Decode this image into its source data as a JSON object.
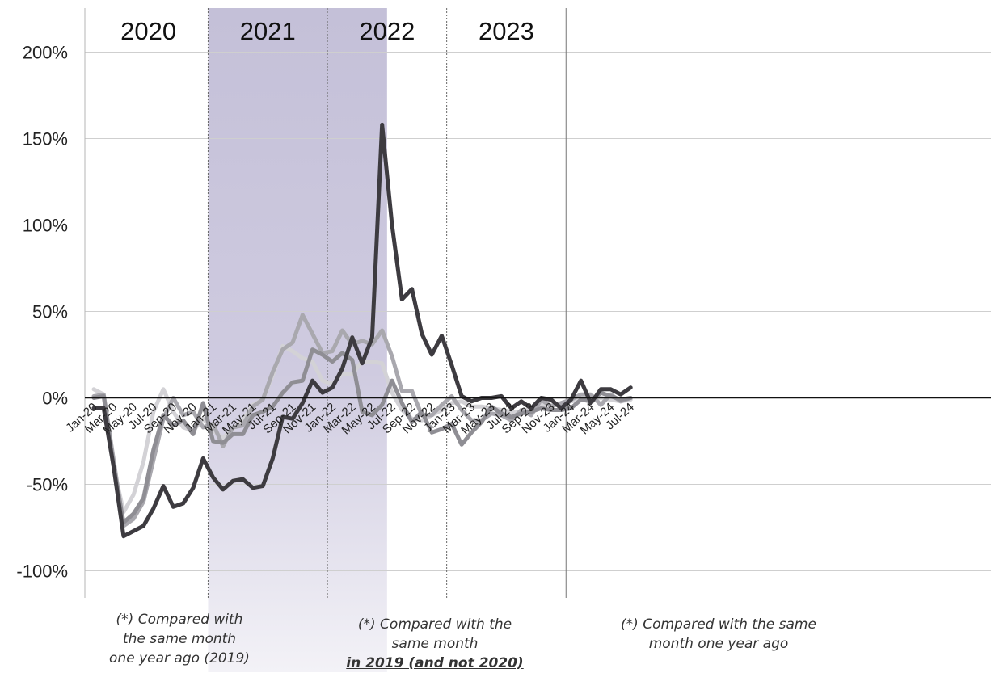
{
  "chart_data": {
    "type": "line",
    "y_ticks": [
      "200%",
      "150%",
      "100%",
      "50%",
      "0%",
      "-50%",
      "-100%"
    ],
    "y_tick_values": [
      200,
      150,
      100,
      50,
      0,
      -50,
      -100
    ],
    "ylim": [
      -115,
      225
    ],
    "x_tick_labels": [
      "Jan-20",
      "Mar-20",
      "May-20",
      "Jul-20",
      "Sep-20",
      "Nov-20",
      "Jan-21",
      "Mar-21",
      "May-21",
      "Jul-21",
      "Sep-21",
      "Nov-21",
      "Jan-22",
      "Mar-22",
      "May-22",
      "Jul-22",
      "Sep-22",
      "Nov-22",
      "Jan-23",
      "Mar-23",
      "May-23",
      "Jul-23",
      "Sep-23",
      "Nov-23",
      "Jan-24",
      "Mar-24",
      "May-24",
      "Jul-24"
    ],
    "years": [
      {
        "label": "2020",
        "start": "Jan-20"
      },
      {
        "label": "2021",
        "start": "Jan-21"
      },
      {
        "label": "2022",
        "start": "Jan-22"
      },
      {
        "label": "2023",
        "start": "Jan-23"
      }
    ],
    "highlight": {
      "from": "Jan-21",
      "to": "Jun-22"
    },
    "grid": true,
    "series": [
      {
        "color": "#3d3b40",
        "values": [
          -6,
          -6,
          -40,
          -80,
          -77,
          -74,
          -64,
          -51,
          -63,
          -61,
          -52,
          -35,
          -46,
          -53,
          -48,
          -47,
          -52,
          -51,
          -35,
          -11,
          -12,
          -3,
          10,
          3,
          6,
          17,
          35,
          20,
          35,
          158,
          100,
          57,
          63,
          37,
          25,
          36,
          19,
          1,
          -2,
          0,
          0,
          1,
          -6,
          -2,
          -6,
          0,
          -1,
          -6,
          -1,
          10,
          -3,
          5,
          5,
          2,
          6
        ]
      },
      {
        "color": "#8f8e94",
        "values": [
          0,
          1,
          -40,
          -72,
          -67,
          -58,
          -30,
          -10,
          -16,
          -13,
          -21,
          -3,
          -25,
          -26,
          -21,
          -21,
          -10,
          -8,
          -5,
          3,
          9,
          10,
          28,
          25,
          21,
          26,
          22,
          -8,
          -10,
          -4,
          10,
          -3,
          -14,
          -8,
          -20,
          -18,
          -15,
          -27,
          -20,
          -14,
          -5,
          -9,
          -11,
          -9,
          -8,
          -6,
          -7,
          -7,
          -6,
          -1,
          -2,
          3,
          1,
          -1,
          0
        ]
      },
      {
        "color": "#a9a8ae",
        "values": [
          1,
          2,
          -36,
          -74,
          -70,
          -60,
          -36,
          -12,
          0,
          -10,
          -8,
          -17,
          -15,
          -28,
          -17,
          -16,
          -5,
          -1,
          15,
          28,
          32,
          48,
          37,
          26,
          27,
          39,
          31,
          33,
          31,
          39,
          24,
          4,
          4,
          -10,
          -10,
          -4,
          1,
          -7,
          -13,
          -13,
          -9,
          -10,
          -13,
          -7,
          -10,
          -1,
          -5,
          -3,
          -1,
          2,
          2,
          -4,
          2,
          -2,
          0
        ]
      },
      {
        "color": "#d3d2d6",
        "values": [
          5,
          2,
          -40,
          -66,
          -56,
          -37,
          -8,
          5,
          -8,
          -17,
          -19,
          -12,
          -19,
          -23,
          -18,
          -13,
          -4,
          -1,
          13,
          30,
          27,
          23,
          21,
          10,
          8,
          14,
          14,
          21,
          21,
          20,
          3,
          -7,
          -12,
          -13,
          -10,
          -7,
          -3,
          -2,
          -5,
          -5,
          -6,
          -7,
          -8,
          -8,
          -6,
          -4,
          -4,
          -4,
          -2,
          -1,
          -1,
          0,
          -1,
          -2,
          -1
        ]
      }
    ]
  },
  "notes": {
    "left": [
      "(*) Compared with",
      "the same month",
      "one year ago (2019)"
    ],
    "middle_lines": [
      "(*) Compared with the",
      "same month"
    ],
    "middle_emphasis": "in 2019 (and not 2020)",
    "right": [
      "(*) Compared with the same",
      "month one year ago"
    ]
  }
}
